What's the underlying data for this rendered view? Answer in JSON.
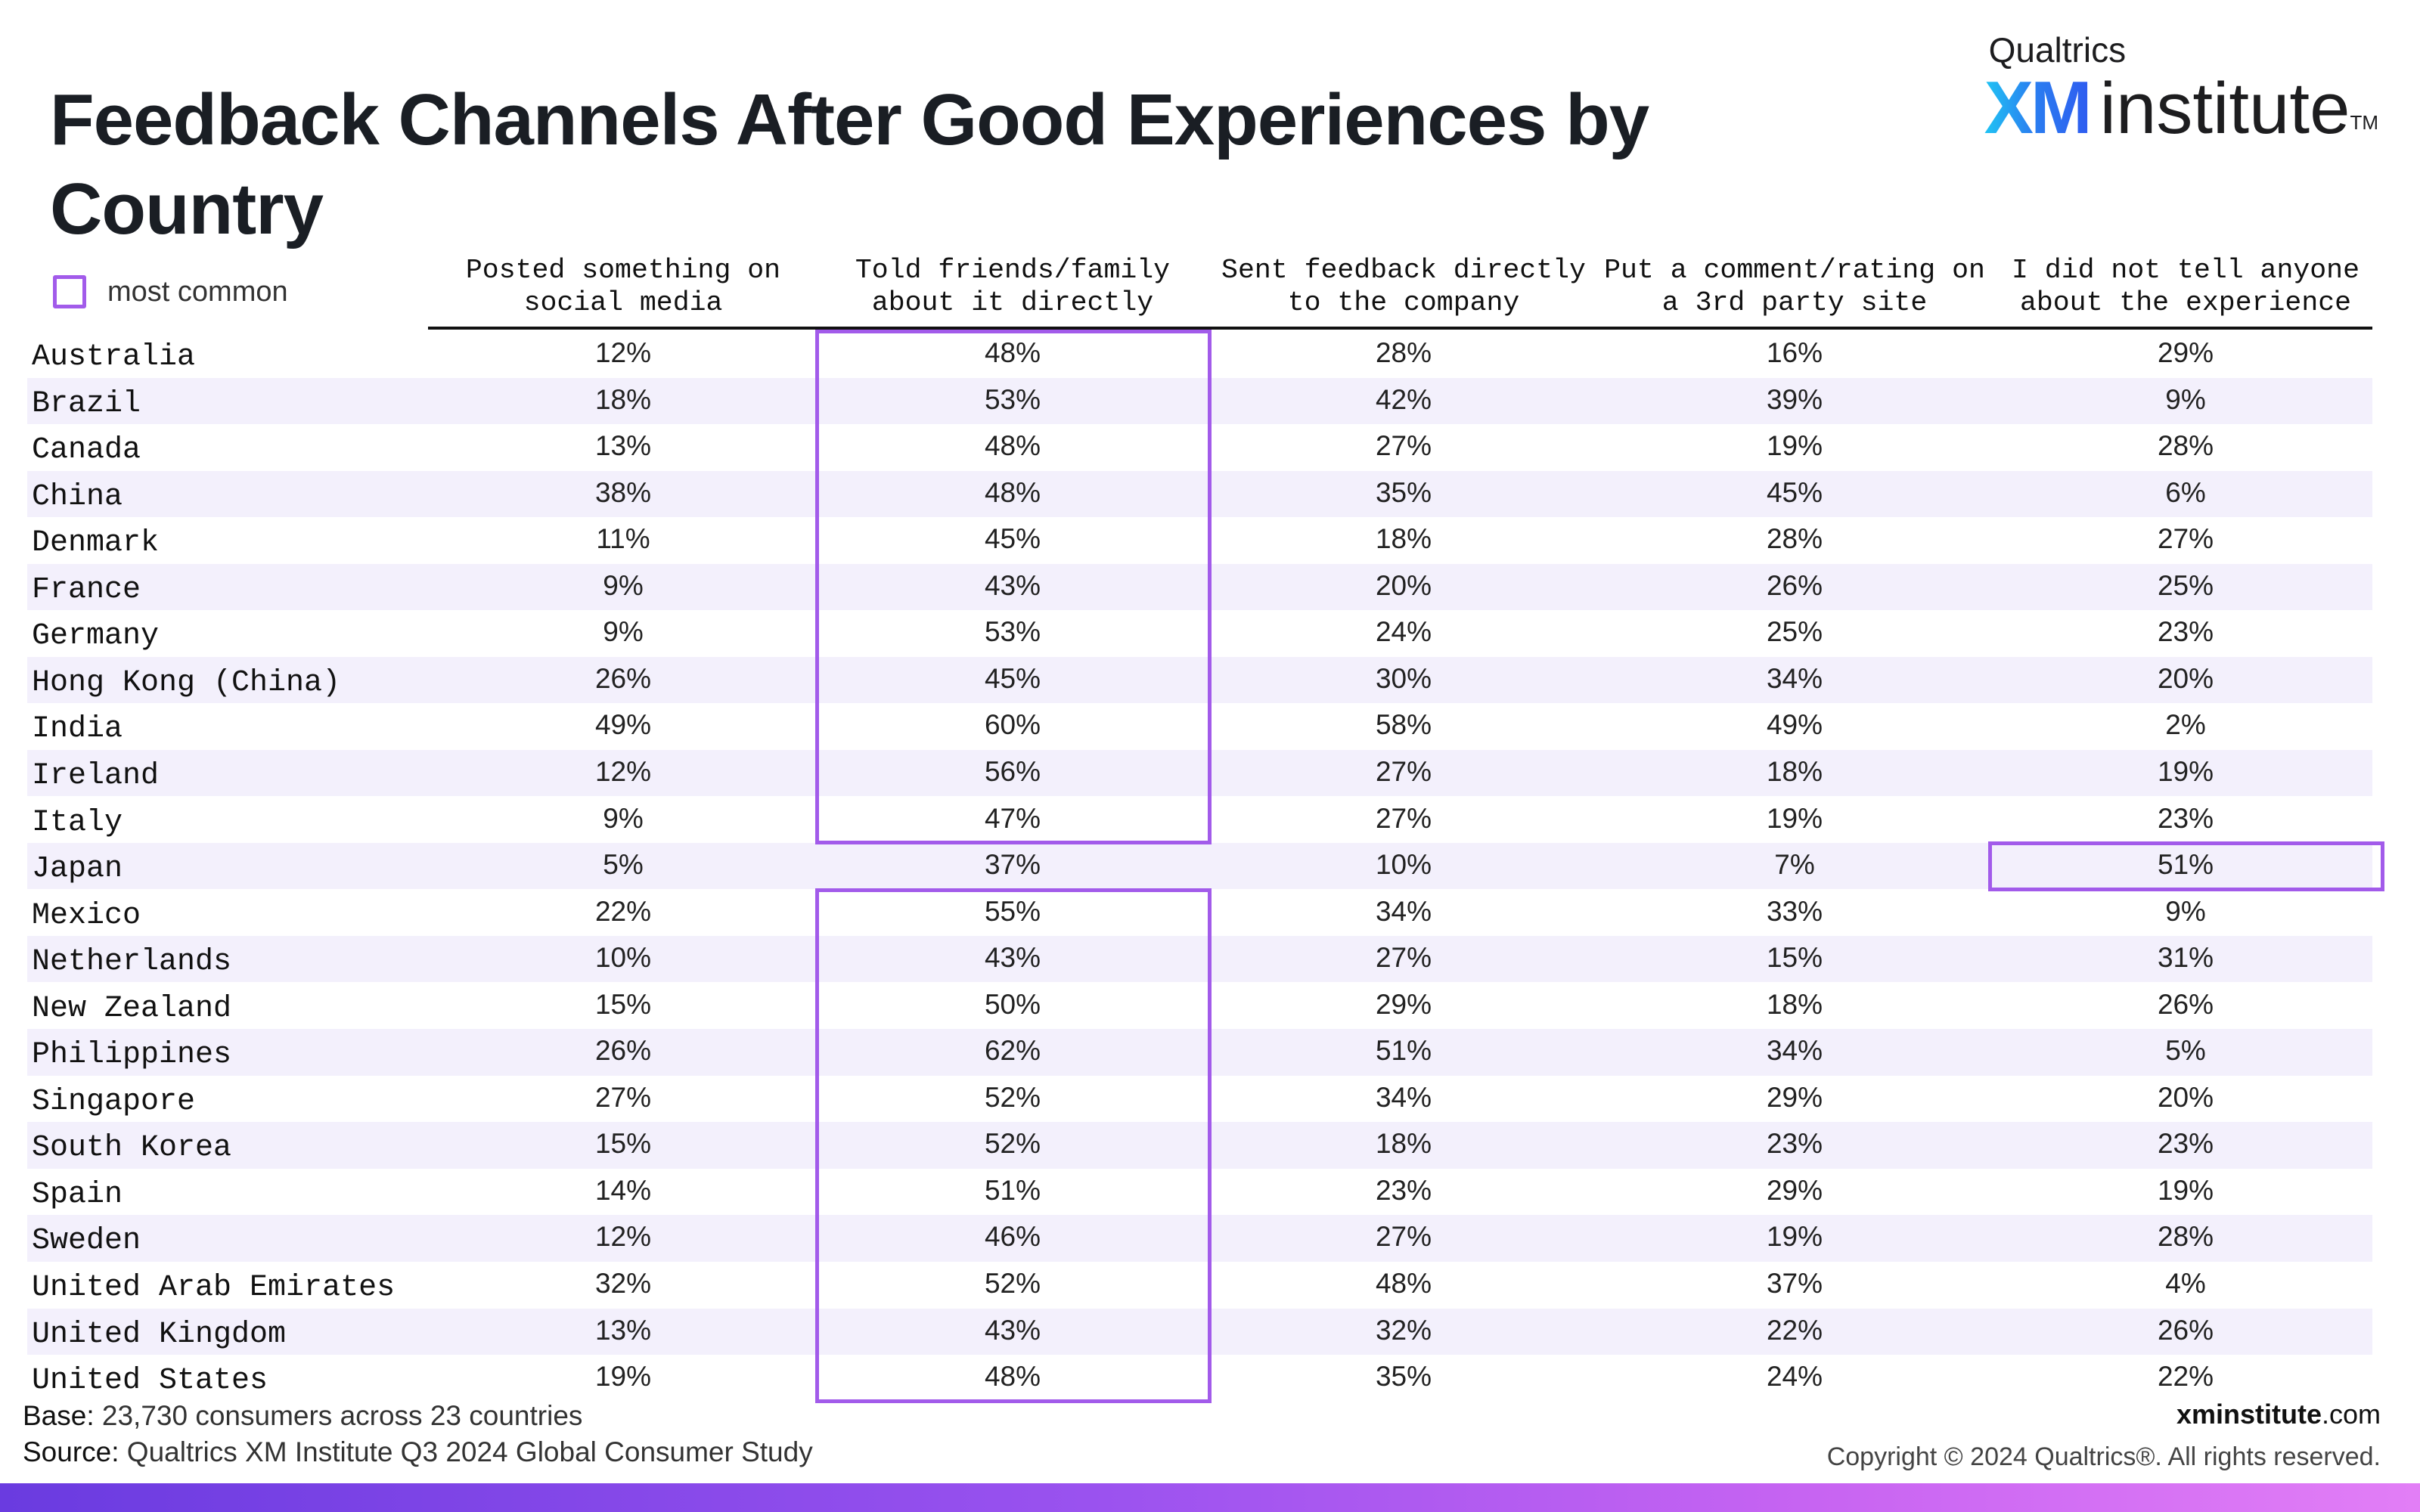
{
  "header": {
    "title": "Feedback Channels After Good Experiences by Country"
  },
  "logo": {
    "top_text": "Qualtrics",
    "xm_text": "XM",
    "institute_text": "institute",
    "tm": "TM"
  },
  "legend": {
    "label": "most common",
    "color": "#a25bea"
  },
  "footer": {
    "base_key": "Base:",
    "base_text": " 23,730 consumers across 23 countries",
    "source_key": "Source:",
    "source_text": " Qualtrics XM Institute Q3 2024 Global Consumer Study",
    "site_bold": "xminstitute",
    "site_rest": ".com",
    "copyright": "Copyright © 2024 Qualtrics®. All rights reserved."
  },
  "colors": {
    "highlight": "#a25bea",
    "row_shade": "#f3f0fc",
    "accent_gradient_start": "#6a3be0",
    "accent_gradient_end": "#e27ef6"
  },
  "chart_data": {
    "type": "table",
    "title": "Feedback Channels After Good Experiences by Country",
    "columns": [
      "Posted something on\nsocial media",
      "Told friends/family\nabout it directly",
      "Sent feedback directly\nto the company",
      "Put a comment/rating on\na 3rd party site",
      "I did not tell anyone\nabout the experience"
    ],
    "rows": [
      {
        "country": "Australia",
        "values": [
          "12%",
          "48%",
          "28%",
          "16%",
          "29%"
        ],
        "most_common": 1
      },
      {
        "country": "Brazil",
        "values": [
          "18%",
          "53%",
          "42%",
          "39%",
          "9%"
        ],
        "most_common": 1
      },
      {
        "country": "Canada",
        "values": [
          "13%",
          "48%",
          "27%",
          "19%",
          "28%"
        ],
        "most_common": 1
      },
      {
        "country": "China",
        "values": [
          "38%",
          "48%",
          "35%",
          "45%",
          "6%"
        ],
        "most_common": 1
      },
      {
        "country": "Denmark",
        "values": [
          "11%",
          "45%",
          "18%",
          "28%",
          "27%"
        ],
        "most_common": 1
      },
      {
        "country": "France",
        "values": [
          "9%",
          "43%",
          "20%",
          "26%",
          "25%"
        ],
        "most_common": 1
      },
      {
        "country": "Germany",
        "values": [
          "9%",
          "53%",
          "24%",
          "25%",
          "23%"
        ],
        "most_common": 1
      },
      {
        "country": "Hong Kong (China)",
        "values": [
          "26%",
          "45%",
          "30%",
          "34%",
          "20%"
        ],
        "most_common": 1
      },
      {
        "country": "India",
        "values": [
          "49%",
          "60%",
          "58%",
          "49%",
          "2%"
        ],
        "most_common": 1
      },
      {
        "country": "Ireland",
        "values": [
          "12%",
          "56%",
          "27%",
          "18%",
          "19%"
        ],
        "most_common": 1
      },
      {
        "country": "Italy",
        "values": [
          "9%",
          "47%",
          "27%",
          "19%",
          "23%"
        ],
        "most_common": 1
      },
      {
        "country": "Japan",
        "values": [
          "5%",
          "37%",
          "10%",
          "7%",
          "51%"
        ],
        "most_common": 4
      },
      {
        "country": "Mexico",
        "values": [
          "22%",
          "55%",
          "34%",
          "33%",
          "9%"
        ],
        "most_common": 1
      },
      {
        "country": "Netherlands",
        "values": [
          "10%",
          "43%",
          "27%",
          "15%",
          "31%"
        ],
        "most_common": 1
      },
      {
        "country": "New Zealand",
        "values": [
          "15%",
          "50%",
          "29%",
          "18%",
          "26%"
        ],
        "most_common": 1
      },
      {
        "country": "Philippines",
        "values": [
          "26%",
          "62%",
          "51%",
          "34%",
          "5%"
        ],
        "most_common": 1
      },
      {
        "country": "Singapore",
        "values": [
          "27%",
          "52%",
          "34%",
          "29%",
          "20%"
        ],
        "most_common": 1
      },
      {
        "country": "South Korea",
        "values": [
          "15%",
          "52%",
          "18%",
          "23%",
          "23%"
        ],
        "most_common": 1
      },
      {
        "country": "Spain",
        "values": [
          "14%",
          "51%",
          "23%",
          "29%",
          "19%"
        ],
        "most_common": 1
      },
      {
        "country": "Sweden",
        "values": [
          "12%",
          "46%",
          "27%",
          "19%",
          "28%"
        ],
        "most_common": 1
      },
      {
        "country": "United Arab Emirates",
        "values": [
          "32%",
          "52%",
          "48%",
          "37%",
          "4%"
        ],
        "most_common": 1
      },
      {
        "country": "United Kingdom",
        "values": [
          "13%",
          "43%",
          "32%",
          "22%",
          "26%"
        ],
        "most_common": 1
      },
      {
        "country": "United States",
        "values": [
          "19%",
          "48%",
          "35%",
          "24%",
          "22%"
        ],
        "most_common": 1
      }
    ]
  }
}
